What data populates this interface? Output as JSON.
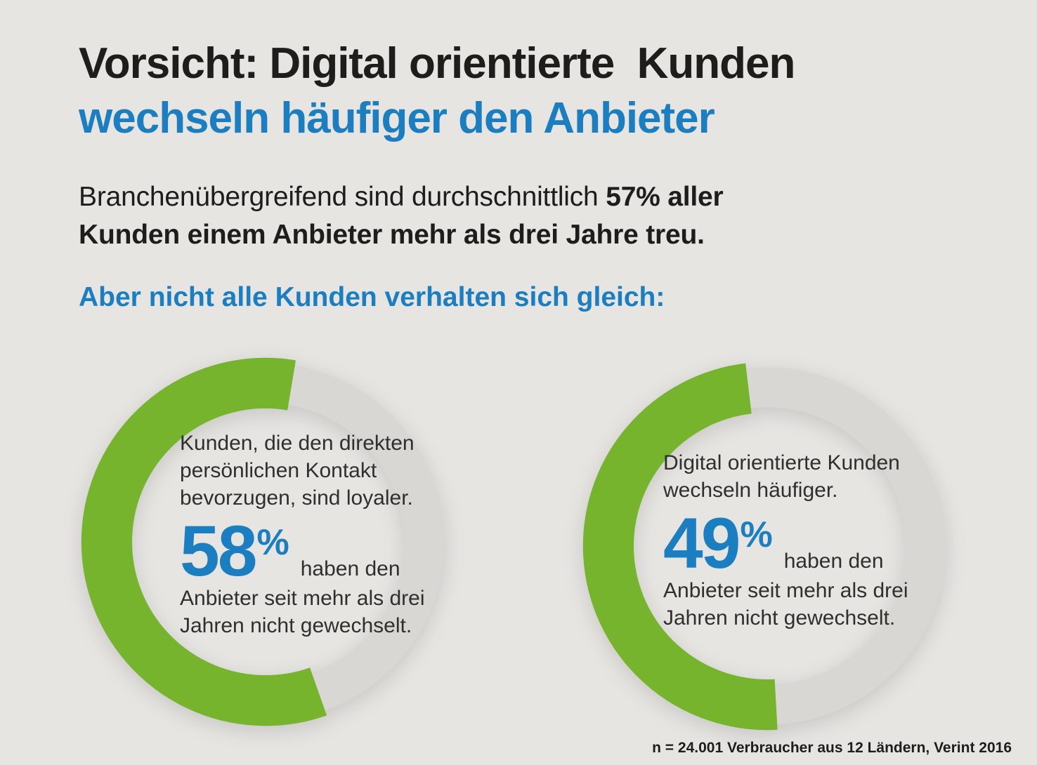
{
  "header": {
    "title_line1": "Vorsicht: Digital orientierte  Kunden",
    "title_line2": "wechseln häufiger den Anbieter",
    "intro_regular": "Branchenübergreifend sind durchschnittlich",
    "intro_bold_line1": "57% aller",
    "intro_bold_line2": "Kunden einem Anbieter mehr als drei Jahre treu.",
    "subheading": "Aber nicht alle Kunden verhalten sich gleich:"
  },
  "footnote": "n = 24.001 Verbraucher aus 12 Ländern, Verint 2016",
  "colors": {
    "background": "#e6e5e2",
    "accent_blue": "#1b7ec1",
    "accent_green": "#75b42c",
    "ring_gray": "#d8d7d3",
    "text_dark": "#1d1d1b",
    "text_body": "#2f2f2d"
  },
  "chart_data": [
    {
      "type": "donut",
      "value": 58,
      "max": 100,
      "unit": "%",
      "caption": "Kunden, die den direkten persönlichen Kontakt bevorzugen, sind loyaler.",
      "description": "haben den Anbieter seit mehr als drei Jahren nicht gewechselt.",
      "arc_color": "#75b42c",
      "track_color": "#d8d7d3"
    },
    {
      "type": "donut",
      "value": 49,
      "max": 100,
      "unit": "%",
      "caption": "Digital orientierte Kunden wechseln häufiger.",
      "description": "haben den Anbieter seit mehr als drei Jahren nicht gewechselt.",
      "arc_color": "#75b42c",
      "track_color": "#d8d7d3"
    }
  ]
}
